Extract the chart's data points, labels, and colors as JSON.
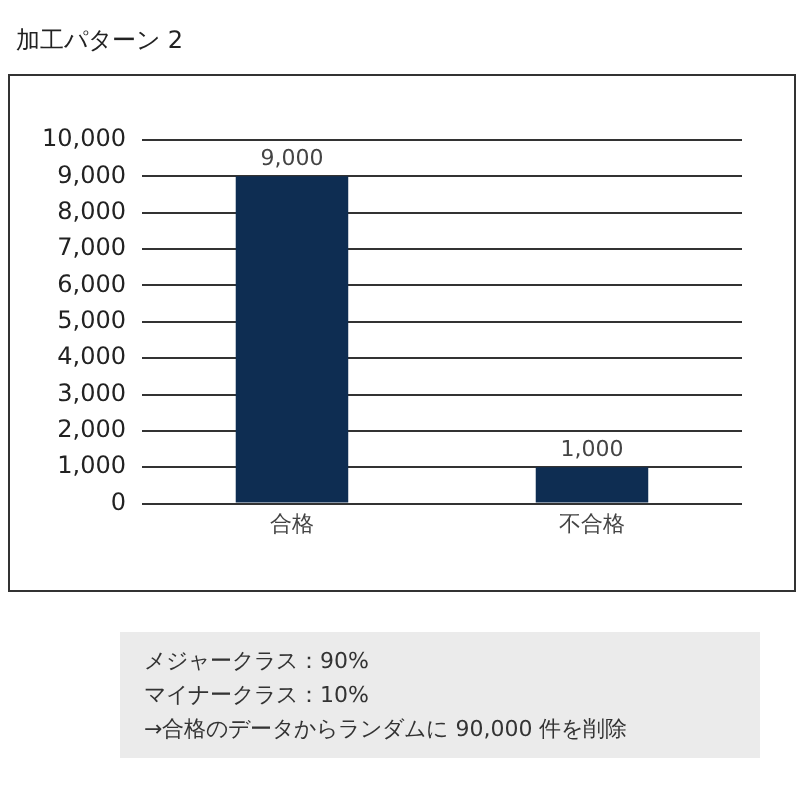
{
  "chart_data": {
    "type": "bar",
    "title": "加工パターン 2",
    "categories": [
      "合格",
      "不合格"
    ],
    "values": [
      9000,
      1000
    ],
    "color": "#0e2d52",
    "ylim": [
      0,
      10000
    ],
    "yticks": [
      0,
      {
        "value": 1000,
        "label": "1,000"
      },
      {
        "value": 2000,
        "label": "2,000"
      },
      {
        "value": 3000,
        "label": "3,000"
      },
      {
        "value": 4000,
        "label": "4,000"
      },
      {
        "value": 5000,
        "label": "5,000"
      },
      {
        "value": 6000,
        "label": "6,000"
      },
      {
        "value": 7000,
        "label": "7,000"
      },
      {
        "value": 8000,
        "label": "8,000"
      },
      {
        "value": 9000,
        "label": "9,000"
      },
      {
        "value": 10000,
        "label": "10,000"
      }
    ],
    "grid": "y",
    "value_labels": [
      "9,000",
      "1,000"
    ],
    "annotations": [
      "メジャークラス：90%",
      "マイナークラス：10%",
      "→合格のデータからランダムに 90,000 件を削除"
    ]
  }
}
